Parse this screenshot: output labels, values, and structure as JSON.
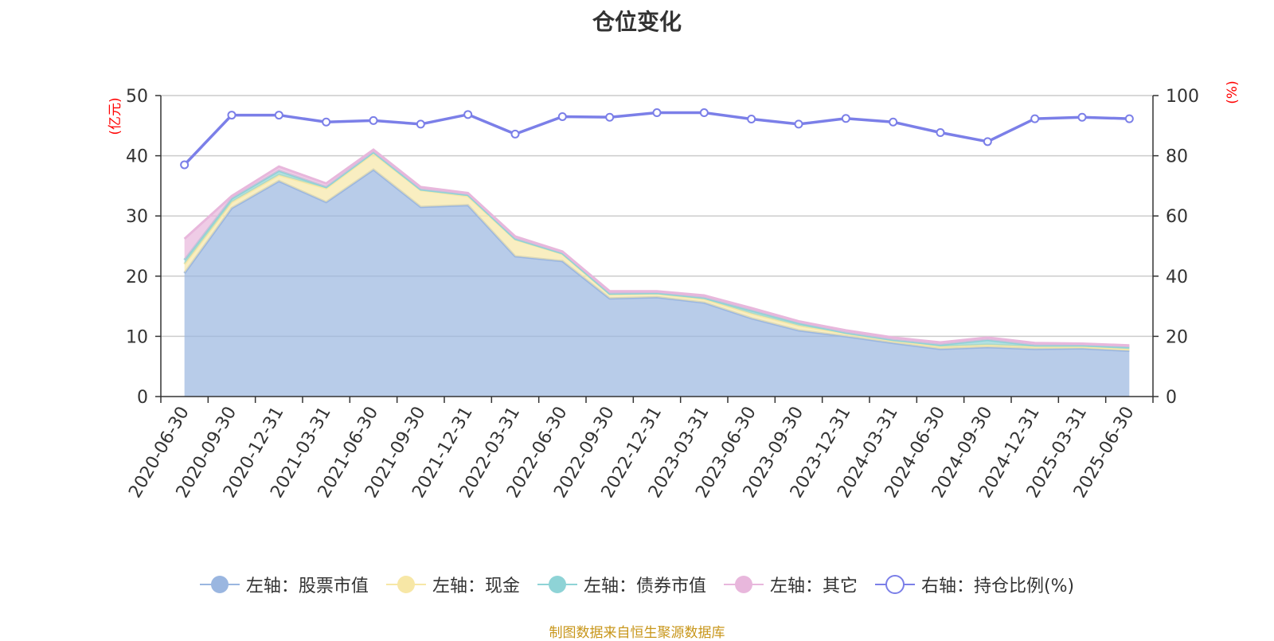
{
  "title": "仓位变化",
  "source": "制图数据来自恒生聚源数据库",
  "colors": {
    "stock": "#9ab6e0",
    "cash": "#f7e7a6",
    "bond": "#8ed3d6",
    "other": "#e8b7dc",
    "ratio": "#7b7fe8",
    "axis_unit": "#ff0000"
  },
  "chart_data": {
    "type": "area",
    "title": "仓位变化",
    "stacked": true,
    "x": [
      "2020-06-30",
      "2020-09-30",
      "2020-12-31",
      "2021-03-31",
      "2021-06-30",
      "2021-09-30",
      "2021-12-31",
      "2022-03-31",
      "2022-06-30",
      "2022-09-30",
      "2022-12-31",
      "2023-03-31",
      "2023-06-30",
      "2023-09-30",
      "2023-12-31",
      "2024-03-31",
      "2024-06-30",
      "2024-09-30",
      "2024-12-31",
      "2025-03-31",
      "2025-06-30"
    ],
    "y_left": {
      "unit_label": "(亿元)",
      "min": 0,
      "max": 50,
      "ticks": [
        0,
        10,
        20,
        30,
        40,
        50
      ]
    },
    "y_right": {
      "unit_label": "(%)",
      "min": 0,
      "max": 100,
      "ticks": [
        0,
        20,
        40,
        60,
        80,
        100
      ]
    },
    "grid": true,
    "legend_position": "bottom",
    "series": [
      {
        "name": "左轴：股票市值",
        "axis": "left",
        "type": "area",
        "color": "#9ab6e0",
        "values": [
          20.5,
          31.3,
          35.8,
          32.3,
          37.7,
          31.5,
          31.8,
          23.3,
          22.5,
          16.3,
          16.5,
          15.6,
          13.0,
          11.0,
          10.0,
          8.9,
          7.9,
          8.2,
          7.9,
          8.0,
          7.6
        ]
      },
      {
        "name": "左轴：现金",
        "axis": "left",
        "type": "area",
        "color": "#f7e7a6",
        "values": [
          1.5,
          1.0,
          1.0,
          2.3,
          2.7,
          2.8,
          1.5,
          2.8,
          1.2,
          0.7,
          0.6,
          0.6,
          0.8,
          0.8,
          0.5,
          0.4,
          0.4,
          0.4,
          0.4,
          0.3,
          0.3
        ]
      },
      {
        "name": "左轴：债券市值",
        "axis": "left",
        "type": "area",
        "color": "#8ed3d6",
        "values": [
          0.7,
          0.6,
          0.7,
          0.2,
          0.2,
          0.1,
          0.2,
          0.1,
          0.1,
          0.1,
          0.1,
          0.2,
          0.5,
          0.4,
          0.1,
          0.1,
          0.3,
          0.8,
          0.2,
          0.2,
          0.3
        ]
      },
      {
        "name": "左轴：其它",
        "axis": "left",
        "type": "area",
        "color": "#e8b7dc",
        "values": [
          3.5,
          0.4,
          0.7,
          0.6,
          0.4,
          0.4,
          0.3,
          0.4,
          0.3,
          0.4,
          0.3,
          0.4,
          0.4,
          0.3,
          0.4,
          0.4,
          0.4,
          0.4,
          0.4,
          0.3,
          0.3
        ]
      },
      {
        "name": "右轴：持仓比例(%)",
        "axis": "right",
        "type": "line",
        "color": "#7b7fe8",
        "values": [
          77.0,
          93.5,
          93.5,
          91.2,
          91.7,
          90.5,
          93.7,
          87.2,
          93.0,
          92.8,
          94.3,
          94.3,
          92.2,
          90.5,
          92.4,
          91.2,
          87.7,
          84.7,
          92.3,
          92.8,
          92.3
        ]
      }
    ]
  }
}
